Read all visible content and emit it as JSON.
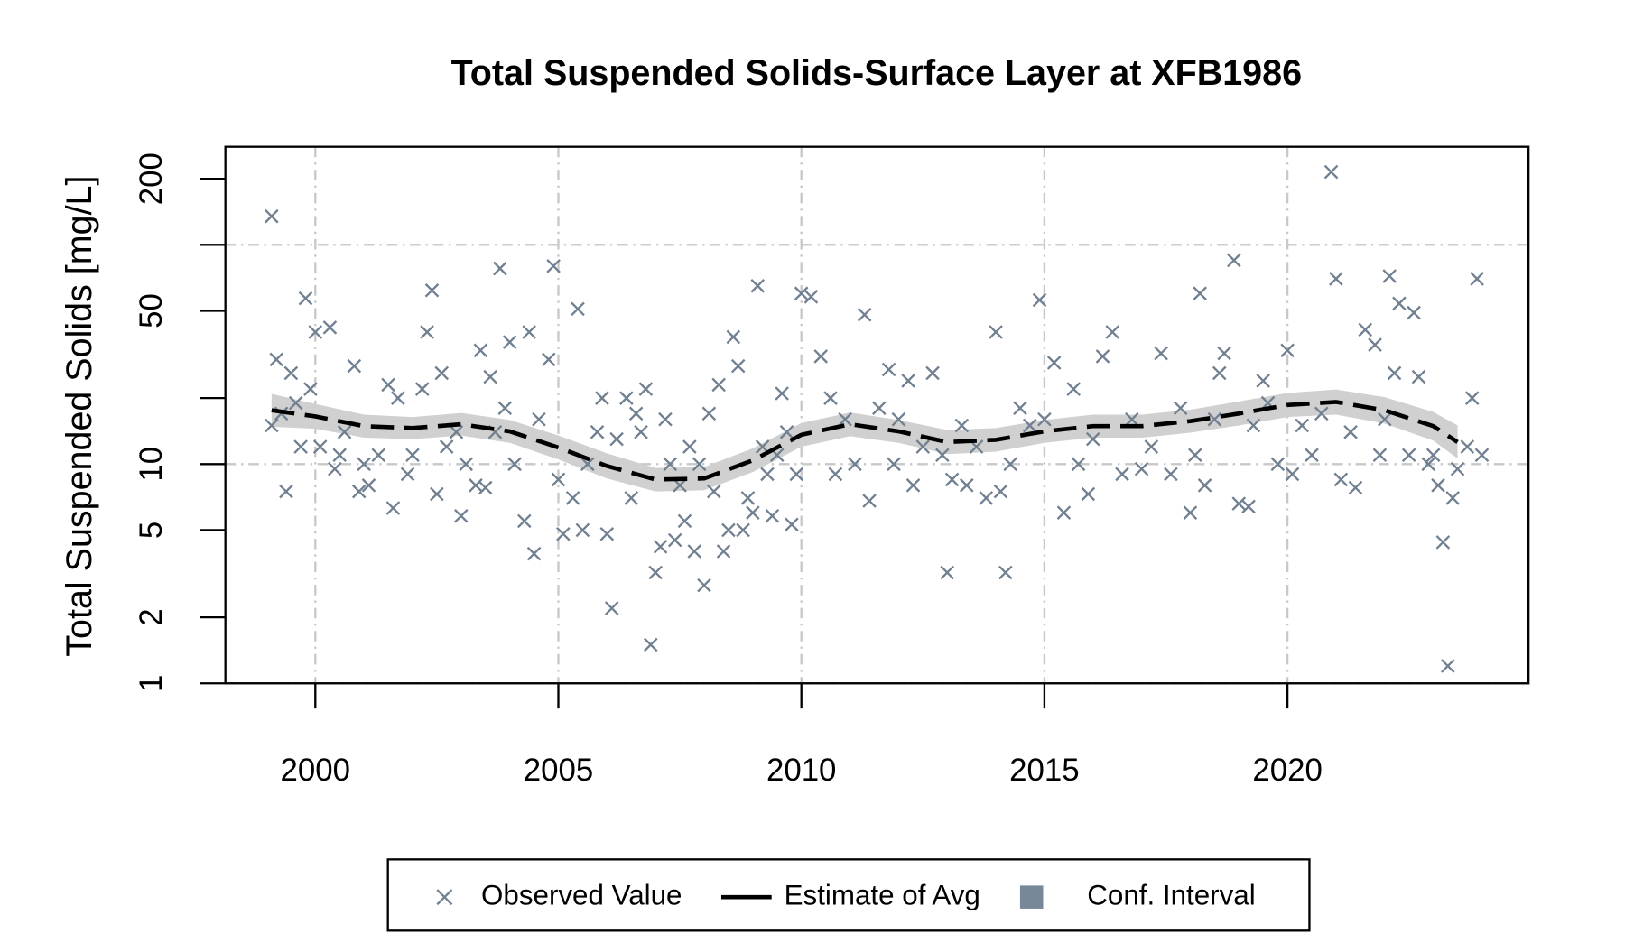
{
  "chart_data": {
    "type": "scatter",
    "title": "Total Suspended Solids-Surface Layer at XFB1986",
    "y_label": "Total Suspended Solids [mg/L]",
    "log_y": true,
    "xlim": [
      1998.15,
      2024.96
    ],
    "ylim": [
      1,
      280
    ],
    "xticks": [
      2000,
      2005,
      2010,
      2015,
      2020
    ],
    "yticks": [
      1,
      2,
      5,
      10,
      {
        "value": 20,
        "label": null
      },
      50,
      {
        "value": 100,
        "label": null
      },
      200
    ],
    "x_grid": true,
    "y_grid": [
      1,
      10,
      100
    ],
    "legend_position": "bottom",
    "series": [
      {
        "name": "Observed Value",
        "type": "scatter",
        "color": "#708090",
        "x": [
          1999.1,
          1999.1,
          1999.2,
          1999.3,
          1999.4,
          1999.5,
          1999.6,
          1999.7,
          1999.8,
          1999.9,
          2000.0,
          2000.1,
          2000.3,
          2000.4,
          2000.5,
          2000.6,
          2000.8,
          2000.9,
          2001.0,
          2001.1,
          2001.3,
          2001.5,
          2001.6,
          2001.7,
          2001.9,
          2002.0,
          2002.2,
          2002.3,
          2002.4,
          2002.5,
          2002.6,
          2002.7,
          2002.9,
          2003.0,
          2003.1,
          2003.3,
          2003.4,
          2003.5,
          2003.6,
          2003.7,
          2003.8,
          2003.9,
          2004.0,
          2004.1,
          2004.3,
          2004.4,
          2004.5,
          2004.6,
          2004.8,
          2004.9,
          2005.0,
          2005.1,
          2005.3,
          2005.4,
          2005.5,
          2005.6,
          2005.8,
          2005.9,
          2006.0,
          2006.1,
          2006.2,
          2006.4,
          2006.5,
          2006.6,
          2006.7,
          2006.8,
          2006.9,
          2007.0,
          2007.1,
          2007.2,
          2007.3,
          2007.4,
          2007.5,
          2007.6,
          2007.7,
          2007.8,
          2007.9,
          2008.0,
          2008.1,
          2008.2,
          2008.3,
          2008.4,
          2008.5,
          2008.6,
          2008.7,
          2008.8,
          2008.9,
          2009.0,
          2009.1,
          2009.2,
          2009.3,
          2009.4,
          2009.5,
          2009.6,
          2009.7,
          2009.8,
          2009.9,
          2010.0,
          2010.2,
          2010.4,
          2010.6,
          2010.7,
          2010.9,
          2011.1,
          2011.3,
          2011.4,
          2011.6,
          2011.8,
          2011.9,
          2012.0,
          2012.2,
          2012.3,
          2012.5,
          2012.7,
          2012.9,
          2013.0,
          2013.1,
          2013.3,
          2013.4,
          2013.6,
          2013.8,
          2014.0,
          2014.1,
          2014.2,
          2014.3,
          2014.5,
          2014.7,
          2014.9,
          2015.0,
          2015.2,
          2015.4,
          2015.6,
          2015.7,
          2015.9,
          2016.0,
          2016.2,
          2016.4,
          2016.6,
          2016.8,
          2017.0,
          2017.2,
          2017.4,
          2017.6,
          2017.8,
          2018.0,
          2018.1,
          2018.2,
          2018.3,
          2018.5,
          2018.6,
          2018.7,
          2018.9,
          2019.0,
          2019.2,
          2019.3,
          2019.5,
          2019.6,
          2019.8,
          2020.0,
          2020.1,
          2020.3,
          2020.5,
          2020.7,
          2020.9,
          2021.0,
          2021.1,
          2021.3,
          2021.4,
          2021.6,
          2021.8,
          2021.9,
          2022.0,
          2022.1,
          2022.2,
          2022.3,
          2022.5,
          2022.6,
          2022.7,
          2022.9,
          2023.0,
          2023.1,
          2023.2,
          2023.3,
          2023.4,
          2023.5,
          2023.7,
          2023.8,
          2023.9,
          2024.0
        ],
        "values": [
          135,
          15,
          30,
          17,
          7.5,
          26,
          19,
          12,
          57,
          22,
          40,
          12,
          42,
          9.5,
          11,
          14,
          28,
          7.5,
          10,
          8,
          11,
          23,
          6.3,
          20,
          9,
          11,
          22,
          40,
          62,
          7.3,
          26,
          12,
          14,
          5.8,
          10,
          8,
          33,
          7.8,
          25,
          14,
          78,
          18,
          36,
          10,
          5.5,
          40,
          3.9,
          16,
          30,
          80,
          8.5,
          4.8,
          7,
          51,
          5,
          10,
          14,
          20,
          4.8,
          2.2,
          13,
          20,
          7,
          17,
          14,
          22,
          1.5,
          3.2,
          4.2,
          16,
          10,
          4.5,
          8,
          5.5,
          12,
          4,
          10,
          2.8,
          17,
          7.5,
          23,
          4,
          5,
          38,
          28,
          5,
          7,
          6,
          65,
          12,
          9,
          5.8,
          11,
          21,
          14,
          5.3,
          9,
          60,
          58,
          31,
          20,
          9,
          16,
          10,
          48,
          6.8,
          18,
          27,
          10,
          16,
          24,
          8,
          12,
          26,
          11,
          3.2,
          8.5,
          15,
          8,
          12,
          7,
          40,
          7.5,
          3.2,
          10,
          18,
          15,
          56,
          16,
          29,
          6,
          22,
          10,
          7.3,
          13,
          31,
          40,
          9,
          16,
          9.5,
          12,
          32,
          9,
          18,
          6,
          11,
          60,
          8,
          16,
          26,
          32,
          85,
          6.6,
          6.4,
          15,
          24,
          19,
          10,
          33,
          9,
          15,
          11,
          17,
          215,
          70,
          8.5,
          14,
          7.8,
          41,
          35,
          11,
          16,
          72,
          26,
          54,
          11,
          49,
          25,
          10,
          11,
          8,
          4.4,
          1.2,
          7,
          9.5,
          12,
          20,
          70,
          11
        ]
      },
      {
        "name": "Estimate of Avg",
        "type": "line",
        "color": "#000000",
        "x": [
          1999.1,
          2000,
          2001,
          2002,
          2003,
          2004,
          2005,
          2006,
          2007,
          2008,
          2009,
          2010,
          2011,
          2012,
          2013,
          2014,
          2015,
          2016,
          2017,
          2018,
          2019,
          2020,
          2021,
          2022,
          2023,
          2023.5
        ],
        "values": [
          17.6,
          16.5,
          14.9,
          14.6,
          15.2,
          14.1,
          11.9,
          9.8,
          8.5,
          8.6,
          10.4,
          13.6,
          15.2,
          14.1,
          12.6,
          12.9,
          14.1,
          14.9,
          14.9,
          15.7,
          17.0,
          18.6,
          19.2,
          17.6,
          14.9,
          12.6
        ]
      },
      {
        "name": "Conf. Interval",
        "type": "band",
        "color": "#778899",
        "fill": "#d0d0d0",
        "x": [
          1999.1,
          2000,
          2001,
          2002,
          2003,
          2004,
          2005,
          2006,
          2007,
          2008,
          2009,
          2010,
          2011,
          2012,
          2013,
          2014,
          2015,
          2016,
          2017,
          2018,
          2019,
          2020,
          2021,
          2022,
          2023,
          2023.5
        ],
        "lower": [
          14.8,
          14.5,
          13.2,
          13.0,
          13.5,
          12.5,
          10.5,
          8.6,
          7.5,
          7.6,
          9.2,
          12.0,
          13.4,
          12.5,
          11.1,
          11.4,
          12.5,
          13.2,
          13.2,
          13.9,
          15.0,
          16.4,
          16.8,
          15.3,
          12.8,
          10.6
        ],
        "upper": [
          20.9,
          18.8,
          16.8,
          16.4,
          17.1,
          15.9,
          13.5,
          11.2,
          9.6,
          9.7,
          11.8,
          15.4,
          17.2,
          15.9,
          14.3,
          14.6,
          15.9,
          16.8,
          16.8,
          17.7,
          19.3,
          21.1,
          21.9,
          20.2,
          17.3,
          15.0
        ]
      }
    ]
  }
}
